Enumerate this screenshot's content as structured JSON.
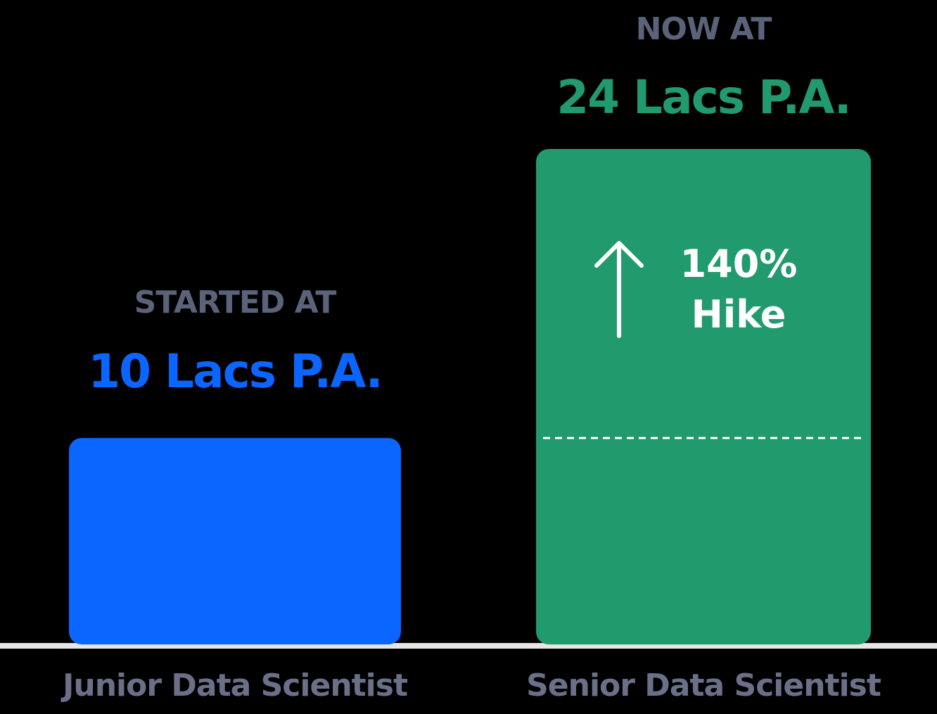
{
  "chart_data": {
    "type": "bar",
    "categories": [
      "Junior Data Scientist",
      "Senior Data Scientist"
    ],
    "values": [
      10,
      24
    ],
    "unit_label": "Lacs P.A.",
    "ylim": [
      0,
      24
    ],
    "bars": [
      {
        "caption": "STARTED AT",
        "value_label": "10 Lacs P.A.",
        "color": "#0a66ff",
        "value_color": "#0a66ff"
      },
      {
        "caption": "NOW AT",
        "value_label": "24 Lacs P.A.",
        "color": "#219a6e",
        "value_color": "#219a6e"
      }
    ],
    "annotation": {
      "line1": "140%",
      "line2": "Hike",
      "icon": "up-arrow-icon"
    },
    "colors": {
      "caption": "#5a6379",
      "axis_label": "#6b7089",
      "baseline": "#e6e6e6",
      "background": "#000000"
    }
  }
}
